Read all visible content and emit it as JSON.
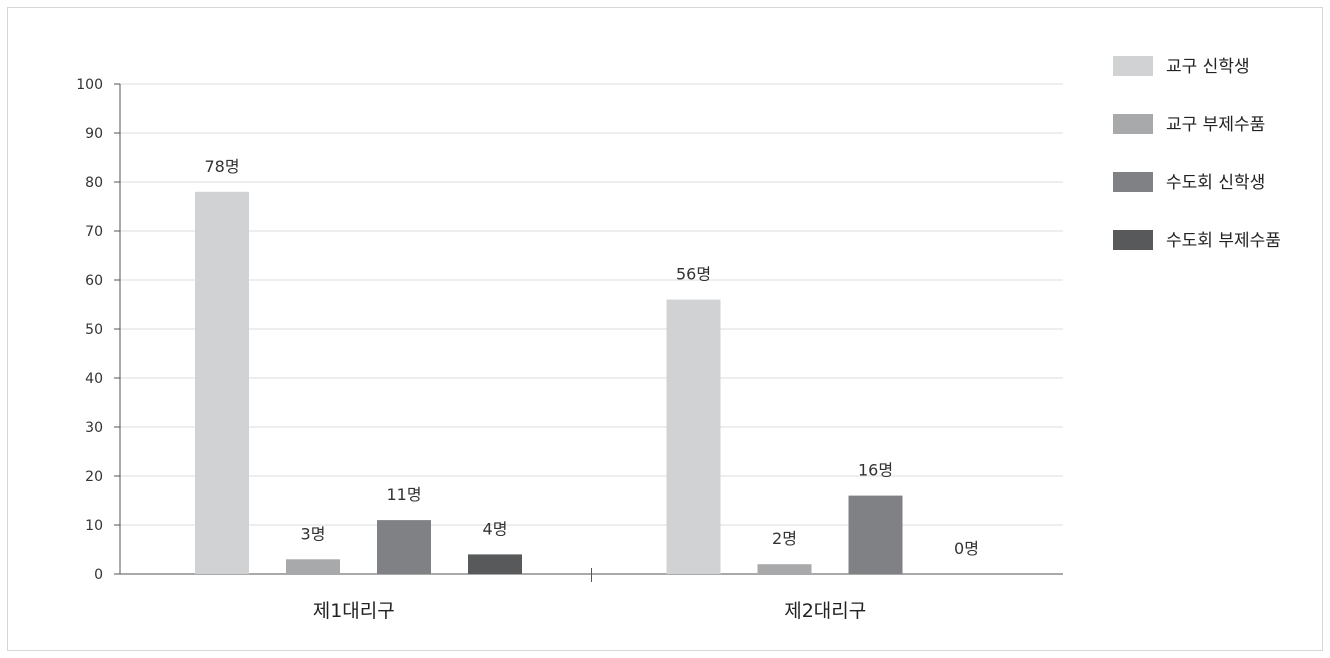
{
  "chart_data": {
    "type": "bar",
    "categories": [
      "제1대리구",
      "제2대리구"
    ],
    "series": [
      {
        "name": "교구 신학생",
        "values": [
          78,
          56
        ],
        "labels": [
          "78명",
          "56명"
        ],
        "color": "#d1d2d4"
      },
      {
        "name": "교구 부제수품",
        "values": [
          3,
          2
        ],
        "labels": [
          "3명",
          "2명"
        ],
        "color": "#a8a9ab"
      },
      {
        "name": "수도회 신학생",
        "values": [
          11,
          16
        ],
        "labels": [
          "11명",
          "16명"
        ],
        "color": "#808184"
      },
      {
        "name": "수도회 부제수품",
        "values": [
          4,
          0
        ],
        "labels": [
          "4명",
          "0명"
        ],
        "color": "#58595b"
      }
    ],
    "ylim": [
      0,
      100
    ],
    "yticks": [
      "0",
      "10",
      "20",
      "30",
      "40",
      "50",
      "60",
      "70",
      "80",
      "90",
      "100"
    ],
    "grid": true,
    "legend": "right"
  }
}
